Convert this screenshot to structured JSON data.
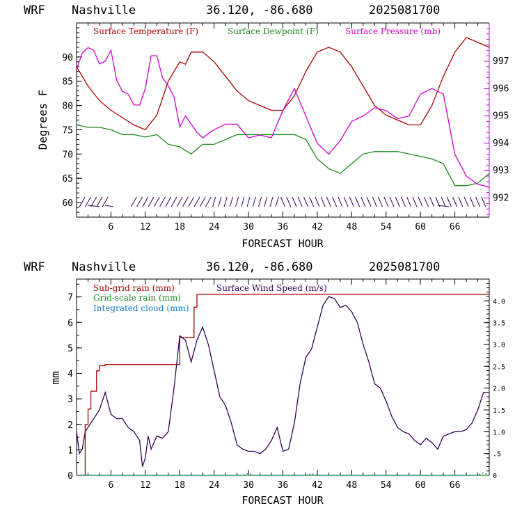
{
  "panels": [
    {
      "header": {
        "model": "WRF",
        "location": "Nashville",
        "coords": "36.120, -86.680",
        "date": "2025081700"
      },
      "xlabel": "FORECAST HOUR",
      "ylabel": "Degrees F"
    },
    {
      "header": {
        "model": "WRF",
        "location": "Nashville",
        "coords": "36.120, -86.680",
        "date": "2025081700"
      },
      "xlabel": "FORECAST HOUR",
      "ylabel": "mm"
    }
  ],
  "colors": {
    "temperature": "#aa0000",
    "dewpoint": "#1a8a1a",
    "pressure": "#cc00cc",
    "subgrid_rain": "#aa0000",
    "gridscale_rain": "#1a8a1a",
    "cloud": "#1177cc",
    "wind": "#330055",
    "axis_left": "#000000",
    "axis_right_top": "#cc00cc"
  },
  "chart_data": [
    {
      "type": "line",
      "title": "",
      "xlabel": "FORECAST HOUR",
      "ylabel": "Degrees F",
      "xlim": [
        0,
        72
      ],
      "ylim": [
        57,
        97
      ],
      "y2lim": [
        991.3,
        998.4
      ],
      "xticks": [
        "6",
        "12",
        "18",
        "24",
        "30",
        "36",
        "42",
        "48",
        "54",
        "60",
        "66"
      ],
      "yticks": [
        "60",
        "65",
        "70",
        "75",
        "80",
        "85",
        "90"
      ],
      "y2ticks": [
        "992",
        "993",
        "994",
        "995",
        "996",
        "997"
      ],
      "series": [
        {
          "name": "Surface Temperature (F)",
          "axis": "left",
          "x": [
            0,
            2,
            4,
            6,
            8,
            10,
            12,
            14,
            16,
            18,
            19,
            20,
            22,
            24,
            26,
            28,
            30,
            32,
            34,
            36,
            38,
            40,
            42,
            44,
            46,
            48,
            50,
            52,
            54,
            56,
            58,
            60,
            62,
            64,
            66,
            68,
            70,
            72
          ],
          "y": [
            88,
            84,
            81,
            79,
            77.5,
            76,
            75,
            78,
            85,
            89,
            88.5,
            91,
            91,
            89,
            86,
            83,
            81,
            80,
            79,
            79,
            82,
            87,
            91,
            92,
            91,
            88,
            84,
            80,
            78,
            77,
            76,
            76,
            80,
            86,
            91,
            94,
            93,
            92
          ]
        },
        {
          "name": "Surface Dewpoint (F)",
          "axis": "left",
          "x": [
            0,
            2,
            4,
            6,
            8,
            10,
            12,
            14,
            16,
            18,
            20,
            22,
            24,
            26,
            28,
            30,
            32,
            34,
            36,
            38,
            40,
            42,
            44,
            46,
            48,
            50,
            52,
            54,
            56,
            58,
            60,
            62,
            64,
            66,
            68,
            70,
            72
          ],
          "y": [
            76,
            75.5,
            75.5,
            75,
            74,
            74,
            73.5,
            74,
            72,
            71.5,
            70,
            72,
            72,
            73,
            74,
            74,
            74,
            74,
            74,
            74,
            73,
            69,
            67,
            66,
            68,
            70,
            70.5,
            70.5,
            70.5,
            70,
            69.5,
            69,
            68,
            63.5,
            63.5,
            64,
            66
          ]
        },
        {
          "name": "Surface Pressure (mb)",
          "axis": "right",
          "x": [
            0,
            1,
            2,
            3,
            4,
            5,
            6,
            7,
            8,
            9,
            10,
            11,
            12,
            13,
            14,
            15,
            16,
            17,
            18,
            19,
            20,
            21,
            22,
            24,
            26,
            28,
            30,
            32,
            34,
            36,
            38,
            40,
            42,
            44,
            46,
            48,
            50,
            52,
            54,
            56,
            58,
            60,
            62,
            64,
            66,
            68,
            70,
            72
          ],
          "y": [
            996.7,
            997.3,
            997.5,
            997.4,
            996.9,
            997.0,
            997.4,
            996.3,
            995.9,
            995.8,
            995.4,
            995.4,
            996.0,
            997.2,
            997.2,
            996.4,
            996.1,
            995.7,
            994.6,
            995.0,
            994.7,
            994.4,
            994.2,
            994.5,
            994.7,
            994.7,
            994.2,
            994.3,
            994.2,
            995.2,
            996.0,
            995.0,
            994.0,
            993.6,
            994.1,
            994.8,
            995.0,
            995.3,
            995.2,
            994.9,
            995.0,
            995.8,
            996.0,
            995.8,
            993.6,
            992.8,
            992.5,
            992.4
          ]
        }
      ]
    },
    {
      "type": "line",
      "title": "",
      "xlabel": "FORECAST HOUR",
      "ylabel": "mm",
      "xlim": [
        0,
        72
      ],
      "ylim": [
        0,
        7.7
      ],
      "y2lim": [
        0,
        4.5
      ],
      "xticks": [
        "6",
        "12",
        "18",
        "24",
        "30",
        "36",
        "42",
        "48",
        "54",
        "60",
        "66"
      ],
      "yticks": [
        "0",
        "1",
        "2",
        "3",
        "4",
        "5",
        "6",
        "7"
      ],
      "y2ticks": [
        "0",
        ".5",
        "1.0",
        "1.5",
        "2.0",
        "2.5",
        "3.0",
        "3.5",
        "4.0"
      ],
      "series": [
        {
          "name": "Sub-grid rain (mm)",
          "axis": "left",
          "x": [
            0,
            1,
            1.5,
            2,
            2.5,
            3,
            3.5,
            4,
            5,
            17.5,
            18,
            20,
            20.5,
            21,
            72
          ],
          "y": [
            0,
            0,
            2.0,
            2.6,
            3.3,
            3.3,
            4.1,
            4.3,
            4.35,
            4.35,
            5.4,
            5.4,
            6.6,
            7.1,
            7.1
          ]
        },
        {
          "name": "Grid-scale rain (mm)",
          "axis": "left",
          "x": [
            0,
            72
          ],
          "y": [
            0,
            0
          ]
        },
        {
          "name": "Integrated cloud (mm)",
          "axis": "left",
          "x": [
            0,
            29,
            30,
            31,
            40,
            41,
            42,
            70,
            71,
            72
          ],
          "y": [
            0,
            0,
            0.08,
            0,
            0,
            0.06,
            0,
            0,
            0.1,
            0
          ]
        },
        {
          "name": "Surface Wind Speed (m/s)",
          "axis": "right",
          "x": [
            0,
            0.5,
            1,
            1.5,
            2,
            3,
            4,
            5,
            6,
            7,
            8,
            9,
            10,
            11,
            11.5,
            12,
            12.5,
            13,
            14,
            15,
            16,
            17,
            18,
            19,
            20,
            21,
            22,
            23,
            24,
            25,
            26,
            27,
            28,
            29,
            30,
            31,
            32,
            33,
            34,
            35,
            36,
            37,
            38,
            39,
            40,
            41,
            42,
            43,
            44,
            45,
            46,
            47,
            48,
            49,
            50,
            51,
            52,
            53,
            54,
            55,
            56,
            57,
            58,
            59,
            60,
            61,
            62,
            63,
            64,
            65,
            66,
            67,
            68,
            69,
            70,
            71,
            72
          ],
          "y": [
            1.0,
            0.5,
            0.6,
            1.0,
            1.1,
            1.3,
            1.5,
            1.9,
            1.4,
            1.3,
            1.3,
            1.1,
            1.0,
            0.8,
            0.2,
            0.4,
            0.9,
            0.6,
            0.9,
            0.85,
            1.0,
            2.0,
            3.2,
            3.1,
            2.6,
            3.1,
            3.4,
            3.0,
            2.4,
            1.8,
            1.6,
            1.2,
            0.7,
            0.6,
            0.55,
            0.55,
            0.5,
            0.6,
            0.8,
            1.1,
            0.55,
            0.6,
            1.2,
            2.1,
            2.7,
            2.9,
            3.4,
            3.9,
            4.1,
            4.05,
            3.85,
            3.9,
            3.75,
            3.5,
            3.0,
            2.6,
            2.1,
            2.0,
            1.7,
            1.35,
            1.1,
            1.0,
            0.95,
            0.8,
            0.7,
            0.85,
            0.75,
            0.6,
            0.9,
            0.95,
            1.0,
            1.0,
            1.05,
            1.2,
            1.5,
            1.9,
            1.9
          ]
        }
      ]
    }
  ]
}
